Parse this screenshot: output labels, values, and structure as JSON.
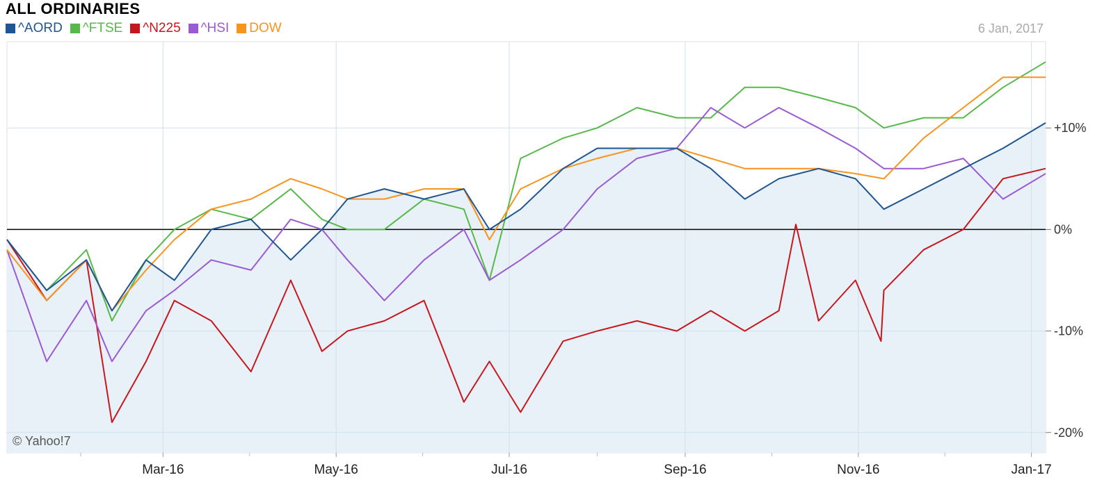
{
  "chart_data": {
    "type": "line",
    "title": "ALL ORDINARIES",
    "date_label": "6 Jan, 2017",
    "copyright": "© Yahoo!7",
    "x_tick_labels": [
      "Mar-16",
      "May-16",
      "Jul-16",
      "Sep-16",
      "Nov-16",
      "Jan-17"
    ],
    "x_tick_dates": [
      "2016-03-01",
      "2016-05-01",
      "2016-07-01",
      "2016-09-01",
      "2016-11-01",
      "2017-01-01"
    ],
    "x_range": [
      "2016-01-06",
      "2017-01-06"
    ],
    "y_tick_labels": [
      "+10%",
      "0%",
      "-10%",
      "-20%"
    ],
    "y_ticks": [
      10,
      0,
      -10,
      -20
    ],
    "ylim": [
      -22,
      18.5
    ],
    "grid": true,
    "legend_position": "top-left",
    "series": [
      {
        "name": "^AORD",
        "color": "#1f5591",
        "filled": true,
        "x": [
          "2016-01-06",
          "2016-01-20",
          "2016-02-03",
          "2016-02-12",
          "2016-02-24",
          "2016-03-05",
          "2016-03-18",
          "2016-04-01",
          "2016-04-15",
          "2016-04-26",
          "2016-05-05",
          "2016-05-18",
          "2016-06-01",
          "2016-06-15",
          "2016-06-24",
          "2016-07-05",
          "2016-07-20",
          "2016-08-01",
          "2016-08-15",
          "2016-08-29",
          "2016-09-10",
          "2016-09-22",
          "2016-10-04",
          "2016-10-18",
          "2016-10-31",
          "2016-11-10",
          "2016-11-24",
          "2016-12-08",
          "2016-12-22",
          "2017-01-06"
        ],
        "y": [
          -1,
          -6,
          -3,
          -8,
          -3,
          -5,
          0,
          1,
          -3,
          0,
          3,
          4,
          3,
          4,
          0,
          2,
          6,
          8,
          8,
          8,
          6,
          3,
          5,
          6,
          5,
          2,
          4,
          6,
          8,
          10.5
        ]
      },
      {
        "name": "^FTSE",
        "color": "#56b94a",
        "filled": false,
        "x": [
          "2016-01-06",
          "2016-01-20",
          "2016-02-03",
          "2016-02-12",
          "2016-02-24",
          "2016-03-05",
          "2016-03-18",
          "2016-04-01",
          "2016-04-15",
          "2016-04-26",
          "2016-05-05",
          "2016-05-18",
          "2016-06-01",
          "2016-06-15",
          "2016-06-24",
          "2016-07-05",
          "2016-07-20",
          "2016-08-01",
          "2016-08-15",
          "2016-08-29",
          "2016-09-10",
          "2016-09-22",
          "2016-10-04",
          "2016-10-18",
          "2016-10-31",
          "2016-11-10",
          "2016-11-24",
          "2016-12-08",
          "2016-12-22",
          "2017-01-06"
        ],
        "y": [
          -1,
          -6,
          -2,
          -9,
          -3,
          0,
          2,
          1,
          4,
          1,
          0,
          0,
          3,
          2,
          -5,
          7,
          9,
          10,
          12,
          11,
          11,
          14,
          14,
          13,
          12,
          10,
          11,
          11,
          14,
          16.5
        ]
      },
      {
        "name": "^N225",
        "color": "#c8161d",
        "filled": false,
        "x": [
          "2016-01-06",
          "2016-01-20",
          "2016-02-03",
          "2016-02-12",
          "2016-02-24",
          "2016-03-05",
          "2016-03-18",
          "2016-04-01",
          "2016-04-15",
          "2016-04-26",
          "2016-05-05",
          "2016-05-18",
          "2016-06-01",
          "2016-06-15",
          "2016-06-24",
          "2016-07-05",
          "2016-07-20",
          "2016-08-01",
          "2016-08-15",
          "2016-08-29",
          "2016-09-10",
          "2016-09-22",
          "2016-10-04",
          "2016-10-10",
          "2016-10-18",
          "2016-10-31",
          "2016-11-09",
          "2016-11-10",
          "2016-11-24",
          "2016-12-08",
          "2016-12-22",
          "2017-01-06"
        ],
        "y": [
          -1,
          -7,
          -3,
          -19,
          -13,
          -7,
          -9,
          -14,
          -5,
          -12,
          -10,
          -9,
          -7,
          -17,
          -13,
          -18,
          -11,
          -10,
          -9,
          -10,
          -8,
          -10,
          -8,
          0.5,
          -9,
          -5,
          -11,
          -6,
          -2,
          0,
          5,
          6
        ]
      },
      {
        "name": "^HSI",
        "color": "#9b59d2",
        "filled": false,
        "x": [
          "2016-01-06",
          "2016-01-20",
          "2016-02-03",
          "2016-02-12",
          "2016-02-24",
          "2016-03-05",
          "2016-03-18",
          "2016-04-01",
          "2016-04-15",
          "2016-04-26",
          "2016-05-05",
          "2016-05-18",
          "2016-06-01",
          "2016-06-15",
          "2016-06-24",
          "2016-07-05",
          "2016-07-20",
          "2016-08-01",
          "2016-08-15",
          "2016-08-29",
          "2016-09-10",
          "2016-09-22",
          "2016-10-04",
          "2016-10-18",
          "2016-10-31",
          "2016-11-10",
          "2016-11-24",
          "2016-12-08",
          "2016-12-22",
          "2017-01-06"
        ],
        "y": [
          -2,
          -13,
          -7,
          -13,
          -8,
          -6,
          -3,
          -4,
          1,
          0,
          -3,
          -7,
          -3,
          0,
          -5,
          -3,
          0,
          4,
          7,
          8,
          12,
          10,
          12,
          10,
          8,
          6,
          6,
          7,
          3,
          5.5
        ]
      },
      {
        "name": "DOW",
        "color": "#f7941d",
        "filled": false,
        "x": [
          "2016-01-06",
          "2016-01-20",
          "2016-02-03",
          "2016-02-12",
          "2016-02-24",
          "2016-03-05",
          "2016-03-18",
          "2016-04-01",
          "2016-04-15",
          "2016-04-26",
          "2016-05-05",
          "2016-05-18",
          "2016-06-01",
          "2016-06-15",
          "2016-06-24",
          "2016-07-05",
          "2016-07-20",
          "2016-08-01",
          "2016-08-15",
          "2016-08-29",
          "2016-09-10",
          "2016-09-22",
          "2016-10-04",
          "2016-10-18",
          "2016-10-31",
          "2016-11-10",
          "2016-11-24",
          "2016-12-08",
          "2016-12-22",
          "2017-01-06"
        ],
        "y": [
          -2,
          -7,
          -3,
          -8,
          -4,
          -1,
          2,
          3,
          5,
          4,
          3,
          3,
          4,
          4,
          -1,
          4,
          6,
          7,
          8,
          8,
          7,
          6,
          6,
          6,
          5.5,
          5,
          9,
          12,
          15,
          15
        ]
      }
    ]
  }
}
